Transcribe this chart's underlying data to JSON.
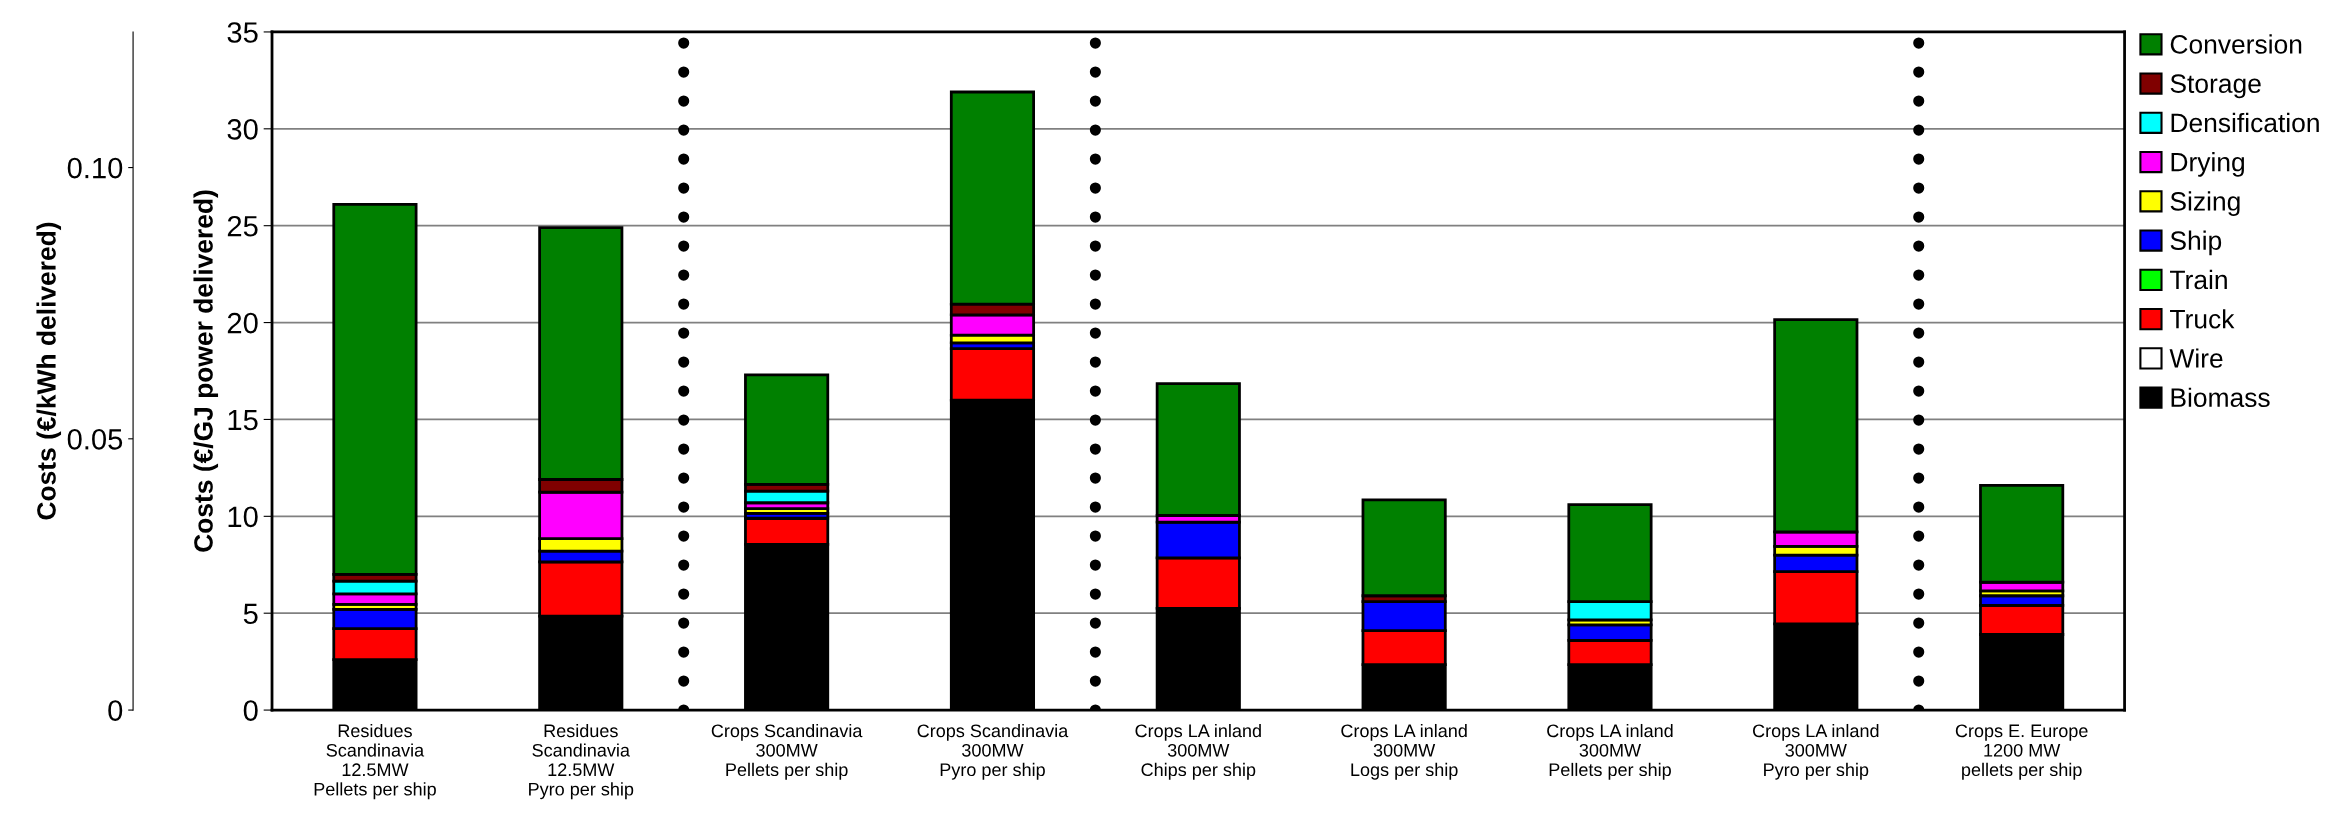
{
  "chart_data": {
    "type": "bar",
    "stacked": true,
    "ylabel": "Costs (€/GJ power delivered)",
    "y2label": "Costs (€/kWh delivered)",
    "categories": [
      "Residues\nScandinavia\n12.5MW\nPellets per ship",
      "Residues\nScandinavia\n12.5MW\nPyro per ship",
      "Crops Scandinavia\n300MW\nPellets per ship",
      "Crops Scandinavia\n300MW\nPyro per ship",
      "Crops LA inland\n300MW\nChips per ship",
      "Crops LA inland\n300MW\nLogs per ship",
      "Crops LA inland\n300MW\nPellets per ship",
      "Crops LA inland\n300MW\nPyro per ship",
      "Crops E. Europe\n1200 MW\npellets per ship"
    ],
    "series": [
      {
        "name": "Biomass",
        "color": "#000000",
        "values": [
          2.6,
          4.85,
          8.55,
          16.0,
          5.25,
          2.35,
          2.35,
          4.45,
          3.9
        ]
      },
      {
        "name": "Wire",
        "color": "#ffffff",
        "values": [
          0,
          0,
          0,
          0,
          0,
          0,
          0,
          0,
          0
        ]
      },
      {
        "name": "Truck",
        "color": "#ff0000",
        "values": [
          1.6,
          2.8,
          1.35,
          2.65,
          2.6,
          1.75,
          1.25,
          2.7,
          1.5
        ]
      },
      {
        "name": "Train",
        "color": "#00ff00",
        "values": [
          0,
          0,
          0,
          0,
          0,
          0,
          0,
          0,
          0
        ]
      },
      {
        "name": "Ship",
        "color": "#0000ff",
        "values": [
          1.0,
          0.55,
          0.25,
          0.3,
          1.85,
          1.5,
          0.8,
          0.85,
          0.5
        ]
      },
      {
        "name": "Sizing",
        "color": "#ffff00",
        "values": [
          0.25,
          0.65,
          0.25,
          0.4,
          0,
          0,
          0.25,
          0.45,
          0.25
        ]
      },
      {
        "name": "Drying",
        "color": "#ff00ff",
        "values": [
          0.55,
          2.4,
          0.3,
          1.05,
          0.35,
          0,
          0,
          0.75,
          0.45
        ]
      },
      {
        "name": "Densification",
        "color": "#00ffff",
        "values": [
          0.65,
          0,
          0.6,
          0,
          0,
          0,
          0.95,
          0,
          0
        ]
      },
      {
        "name": "Storage",
        "color": "#800000",
        "values": [
          0.35,
          0.65,
          0.35,
          0.55,
          0,
          0.3,
          0,
          0,
          0
        ]
      },
      {
        "name": "Conversion",
        "color": "#008000",
        "values": [
          19.1,
          13.0,
          5.65,
          10.95,
          6.8,
          4.95,
          5.0,
          10.95,
          5.0
        ]
      }
    ],
    "ylim": [
      0,
      35
    ],
    "yticks": [
      0,
      5,
      10,
      15,
      20,
      25,
      30,
      35
    ],
    "y2lim": [
      0,
      0.125
    ],
    "y2ticks": [
      {
        "value": 0,
        "label": "0"
      },
      {
        "value": 0.05,
        "label": "0.05"
      },
      {
        "value": 0.1,
        "label": "0.10"
      }
    ],
    "grid": "y",
    "legend": "right"
  }
}
